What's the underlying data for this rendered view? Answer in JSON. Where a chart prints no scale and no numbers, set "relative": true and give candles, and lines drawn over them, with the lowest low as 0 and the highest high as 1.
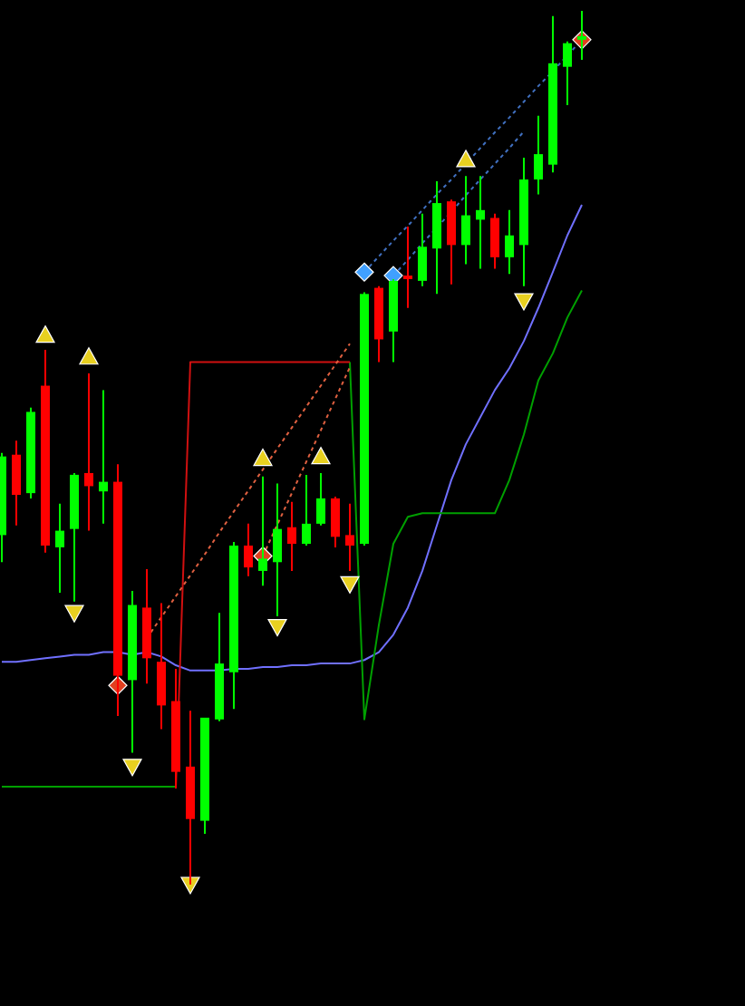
{
  "chart_data": {
    "type": "candlestick",
    "relative": true,
    "categories": [
      null,
      null,
      null,
      null,
      null,
      null,
      null,
      null,
      null,
      null,
      null,
      null,
      null,
      null,
      null,
      null,
      null,
      null,
      null,
      null,
      null,
      null,
      null,
      null,
      null,
      null,
      null,
      null,
      null,
      null,
      null,
      null,
      null,
      null,
      null,
      null,
      null,
      null,
      null,
      null,
      null
    ],
    "ohlc": [
      [
        0.4,
        0.494,
        0.369,
        0.49
      ],
      [
        0.492,
        0.508,
        0.411,
        0.446
      ],
      [
        0.448,
        0.546,
        0.442,
        0.541
      ],
      [
        0.571,
        0.612,
        0.38,
        0.388
      ],
      [
        0.386,
        0.436,
        0.334,
        0.405
      ],
      [
        0.407,
        0.471,
        0.324,
        0.469
      ],
      [
        0.471,
        0.585,
        0.405,
        0.456
      ],
      [
        0.45,
        0.566,
        0.413,
        0.461
      ],
      [
        0.461,
        0.481,
        0.193,
        0.239
      ],
      [
        0.234,
        0.336,
        0.151,
        0.32
      ],
      [
        0.317,
        0.361,
        0.23,
        0.259
      ],
      [
        0.255,
        0.322,
        0.178,
        0.205
      ],
      [
        0.21,
        0.247,
        0.11,
        0.129
      ],
      [
        0.135,
        0.199,
        0,
        0.075
      ],
      [
        0.073,
        0.191,
        0.058,
        0.191
      ],
      [
        0.189,
        0.311,
        0.187,
        0.253
      ],
      [
        0.243,
        0.392,
        0.201,
        0.388
      ],
      [
        0.388,
        0.413,
        0.353,
        0.363
      ],
      [
        0.359,
        0.467,
        0.342,
        0.373
      ],
      [
        0.369,
        0.459,
        0.307,
        0.407
      ],
      [
        0.409,
        0.438,
        0.359,
        0.39
      ],
      [
        0.39,
        0.469,
        0.388,
        0.413
      ],
      [
        0.413,
        0.471,
        0.411,
        0.442
      ],
      [
        0.442,
        0.444,
        0.386,
        0.398
      ],
      [
        0.4,
        0.436,
        0.359,
        0.388
      ],
      [
        0.39,
        0.678,
        0.388,
        0.676
      ],
      [
        0.683,
        0.685,
        0.598,
        0.624
      ],
      [
        0.633,
        0.693,
        0.598,
        0.691
      ],
      [
        0.697,
        0.753,
        0.66,
        0.693
      ],
      [
        0.691,
        0.768,
        0.685,
        0.73
      ],
      [
        0.728,
        0.805,
        0.676,
        0.78
      ],
      [
        0.782,
        0.784,
        0.687,
        0.732
      ],
      [
        0.732,
        0.811,
        0.71,
        0.766
      ],
      [
        0.761,
        0.811,
        0.705,
        0.772
      ],
      [
        0.763,
        0.768,
        0.705,
        0.718
      ],
      [
        0.718,
        0.772,
        0.699,
        0.743
      ],
      [
        0.732,
        0.832,
        0.685,
        0.807
      ],
      [
        0.807,
        0.88,
        0.79,
        0.836
      ],
      [
        0.824,
        0.994,
        0.815,
        0.94
      ],
      [
        0.936,
        0.965,
        0.892,
        0.963
      ],
      [
        0.967,
        1,
        0.944,
        0.971
      ]
    ],
    "colors": [
      "#00ff00",
      "#ff0000",
      "#00ff00",
      "#ff0000",
      "#00ff00",
      "#00ff00",
      "#ff0000",
      "#00ff00",
      "#ff0000",
      "#00ff00",
      "#ff0000",
      "#ff0000",
      "#ff0000",
      "#ff0000",
      "#00ff00",
      "#00ff00",
      "#00ff00",
      "#ff0000",
      "#00ff00",
      "#00ff00",
      "#ff0000",
      "#00ff00",
      "#00ff00",
      "#ff0000",
      "#ff0000",
      "#00ff00",
      "#ff0000",
      "#00ff00",
      "#ff0000",
      "#00ff00",
      "#00ff00",
      "#ff0000",
      "#00ff00",
      "#00ff00",
      "#ff0000",
      "#00ff00",
      "#00ff00",
      "#00ff00",
      "#00ff00",
      "#00ff00",
      "#00ff00"
    ],
    "series": [
      {
        "type": "line",
        "color": "#7070ff",
        "values": [
          0.255,
          0.255,
          0.257,
          0.259,
          0.261,
          0.263,
          0.263,
          0.266,
          0.266,
          0.263,
          0.266,
          0.261,
          0.251,
          0.245,
          0.245,
          0.245,
          0.247,
          0.247,
          0.249,
          0.249,
          0.251,
          0.251,
          0.253,
          0.253,
          0.253,
          0.257,
          0.266,
          0.286,
          0.317,
          0.359,
          0.411,
          0.463,
          0.504,
          0.535,
          0.566,
          0.591,
          0.622,
          0.66,
          0.701,
          0.743,
          0.778
        ]
      },
      {
        "type": "line",
        "color": "#00a000",
        "values": [
          0.112,
          0.112,
          0.112,
          0.112,
          0.112,
          0.112,
          0.112,
          0.112,
          0.112,
          0.112,
          0.112,
          0.112,
          0.112,
          null,
          null,
          null,
          null,
          null,
          null,
          null,
          null,
          null,
          null,
          null,
          0.598,
          0.189,
          0.297,
          0.39,
          0.421,
          0.425,
          0.425,
          0.425,
          0.425,
          0.425,
          0.425,
          0.463,
          0.515,
          0.577,
          0.608,
          0.649,
          0.68
        ]
      },
      {
        "type": "line",
        "color": "#d01010",
        "values": [
          null,
          null,
          null,
          null,
          null,
          null,
          null,
          null,
          null,
          null,
          null,
          null,
          0.11,
          0.598,
          0.598,
          0.598,
          0.598,
          0.598,
          0.598,
          0.598,
          0.598,
          0.598,
          0.598,
          0.598,
          0.598,
          null,
          null,
          null,
          null,
          null,
          null,
          null,
          null,
          null,
          null,
          null,
          null,
          null,
          null,
          null,
          null
        ]
      },
      {
        "type": "line",
        "color": "#e06040",
        "line_style": "dotted",
        "values": [
          null,
          null,
          null,
          null,
          null,
          null,
          null,
          null,
          null,
          null,
          0.282,
          0.306,
          0.33,
          0.354,
          0.378,
          0.403,
          0.427,
          0.451,
          0.475,
          0.499,
          0.523,
          0.547,
          0.571,
          0.595,
          0.619,
          null,
          null,
          null,
          null,
          null,
          null,
          null,
          null,
          null,
          null,
          null,
          null,
          null,
          null,
          null,
          null
        ]
      },
      {
        "type": "line",
        "color": "#e06040",
        "line_style": "dotted",
        "values": [
          null,
          null,
          null,
          null,
          null,
          null,
          null,
          null,
          null,
          null,
          null,
          null,
          null,
          null,
          null,
          null,
          null,
          null,
          0.376,
          0.412,
          0.448,
          0.484,
          0.52,
          0.556,
          0.592,
          null,
          null,
          null,
          null,
          null,
          null,
          null,
          null,
          null,
          null,
          null,
          null,
          null,
          null,
          null,
          null
        ]
      },
      {
        "type": "line",
        "color": "#4070c0",
        "line_style": "dotted",
        "values": [
          null,
          null,
          null,
          null,
          null,
          null,
          null,
          null,
          null,
          null,
          null,
          null,
          null,
          null,
          null,
          null,
          null,
          null,
          null,
          null,
          null,
          null,
          null,
          null,
          null,
          0.701,
          0.719,
          0.737,
          0.754,
          0.772,
          0.79,
          0.807,
          0.825,
          0.843,
          0.861,
          0.878,
          0.896,
          0.914,
          0.931,
          0.949,
          0.967
        ]
      },
      {
        "type": "line",
        "color": "#4070c0",
        "line_style": "dotted",
        "values": [
          null,
          null,
          null,
          null,
          null,
          null,
          null,
          null,
          null,
          null,
          null,
          null,
          null,
          null,
          null,
          null,
          null,
          null,
          null,
          null,
          null,
          null,
          null,
          null,
          null,
          null,
          null,
          0.697,
          0.715,
          0.734,
          0.752,
          0.77,
          0.789,
          0.807,
          0.825,
          0.843,
          0.862,
          null,
          null,
          null,
          null
        ]
      },
      {
        "type": "scatter",
        "marker": "triangle",
        "color": "#e8d020",
        "values": [
          null,
          null,
          null,
          0.629,
          null,
          null,
          0.604,
          null,
          null,
          null,
          null,
          null,
          null,
          null,
          null,
          null,
          null,
          null,
          0.488,
          null,
          null,
          null,
          0.49,
          null,
          null,
          null,
          null,
          null,
          null,
          null,
          null,
          null,
          0.83,
          null,
          null,
          null,
          null,
          null,
          null,
          null,
          null
        ]
      },
      {
        "type": "scatter",
        "marker": "triangle",
        "color": "#e8d020",
        "values": [
          null,
          null,
          null,
          null,
          null,
          0.311,
          null,
          null,
          null,
          0.135,
          null,
          null,
          null,
          0,
          null,
          null,
          null,
          null,
          null,
          0.295,
          null,
          null,
          null,
          null,
          0.344,
          null,
          null,
          null,
          null,
          null,
          null,
          null,
          null,
          null,
          null,
          null,
          0.668,
          null,
          null,
          null,
          null
        ]
      },
      {
        "type": "scatter",
        "marker": "diamond",
        "color": "#40a0ff",
        "values": [
          null,
          null,
          null,
          null,
          null,
          null,
          null,
          null,
          null,
          null,
          null,
          null,
          null,
          null,
          null,
          null,
          null,
          null,
          null,
          null,
          null,
          null,
          null,
          null,
          null,
          0.701,
          null,
          0.697,
          null,
          null,
          null,
          null,
          null,
          null,
          null,
          null,
          null,
          null,
          null,
          null,
          null
        ]
      },
      {
        "type": "scatter",
        "marker": "diamond",
        "color": "#e04020",
        "values": [
          null,
          null,
          null,
          null,
          null,
          null,
          null,
          null,
          0.228,
          null,
          null,
          null,
          null,
          null,
          null,
          null,
          null,
          null,
          0.376,
          null,
          null,
          null,
          null,
          null,
          null,
          null,
          null,
          null,
          null,
          null,
          null,
          null,
          null,
          null,
          null,
          null,
          null,
          null,
          null,
          null,
          0.967
        ]
      }
    ]
  }
}
